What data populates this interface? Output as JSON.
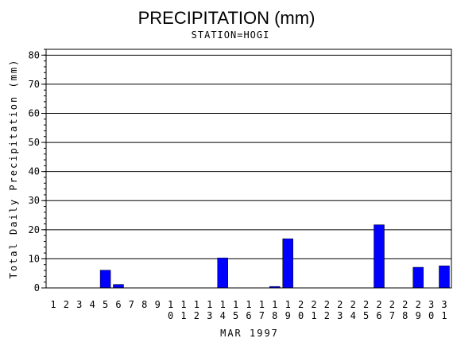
{
  "chart_data": {
    "type": "bar",
    "title": "PRECIPITATION (mm)",
    "subtitle": "STATION=HOGI",
    "xlabel": "MAR 1997",
    "ylabel": "Total Daily Precipitation (mm)",
    "ylim": [
      0,
      82
    ],
    "yticks": [
      0,
      10,
      20,
      30,
      40,
      50,
      60,
      70,
      80
    ],
    "grid": true,
    "bar_color": "#0000ff",
    "categories": [
      "1",
      "2",
      "3",
      "4",
      "5",
      "6",
      "7",
      "8",
      "9",
      "10",
      "11",
      "12",
      "13",
      "14",
      "15",
      "16",
      "17",
      "18",
      "19",
      "20",
      "21",
      "22",
      "23",
      "24",
      "25",
      "26",
      "27",
      "28",
      "29",
      "30",
      "31"
    ],
    "values": [
      0,
      0,
      0,
      0,
      6.1,
      1.2,
      0,
      0,
      0,
      0,
      0,
      0,
      0,
      10.3,
      0,
      0,
      0,
      0.5,
      16.9,
      0,
      0,
      0,
      0,
      0,
      0,
      21.7,
      0,
      0,
      7.1,
      0,
      7.6
    ]
  }
}
